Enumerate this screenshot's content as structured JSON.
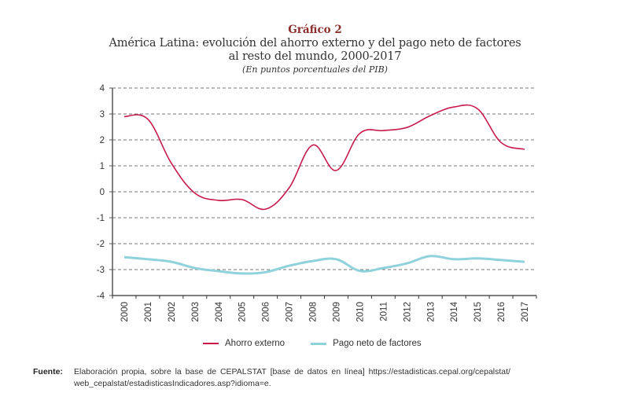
{
  "header": {
    "chart_number": "Gráfico 2",
    "title_line1": "América Latina: evolución del ahorro externo y del pago neto de factores",
    "title_line2": "al resto del mundo, 2000-2017",
    "subtitle": "(En puntos porcentuales del PIB)"
  },
  "footer": {
    "source_label": "Fuente:",
    "source_text_line1": "Elaboración propia, sobre la base de CEPALSTAT [base de datos en línea] https://estadisticas.cepal.org/cepalstat/",
    "source_text_line2": "web_cepalstat/estadisticasIndicadores.asp?idioma=e."
  },
  "colors": {
    "title": "#8c2f2f",
    "ahorro_externo": "#c8194b",
    "pago_neto": "#8fd2dc",
    "grid": "#777777",
    "axis": "#555555"
  },
  "chart_data": {
    "type": "line",
    "title": "América Latina: evolución del ahorro externo y del pago neto de factores al resto del mundo, 2000-2017",
    "subtitle": "(En puntos porcentuales del PIB)",
    "xlabel": "",
    "ylabel": "",
    "ylim": [
      -4,
      4
    ],
    "yticks": [
      4,
      3,
      2,
      1,
      0,
      -1,
      -2,
      -3,
      -4
    ],
    "ytick_labels": [
      "4",
      "3",
      "2",
      "1",
      "0",
      "-1",
      "-2",
      "-3",
      "-4"
    ],
    "grid": "horizontal dashed",
    "legend_position": "bottom-center",
    "categories": [
      "2000",
      "2001",
      "2002",
      "2003",
      "2004",
      "2005",
      "2006",
      "2007",
      "2008",
      "2009",
      "2010",
      "2011",
      "2012",
      "2013",
      "2014",
      "2015",
      "2016",
      "2017"
    ],
    "series": [
      {
        "name": "Ahorro externo",
        "color": "#c8194b",
        "values": [
          2.9,
          2.8,
          1.1,
          -0.05,
          -0.33,
          -0.3,
          -0.67,
          0.15,
          1.8,
          0.82,
          2.25,
          2.36,
          2.48,
          2.94,
          3.27,
          3.2,
          1.9,
          1.64
        ]
      },
      {
        "name": "Pago neto de factores",
        "color": "#8fd2dc",
        "values": [
          -2.52,
          -2.6,
          -2.7,
          -2.94,
          -3.06,
          -3.15,
          -3.1,
          -2.85,
          -2.67,
          -2.6,
          -3.05,
          -2.94,
          -2.76,
          -2.48,
          -2.6,
          -2.57,
          -2.63,
          -2.7
        ]
      }
    ]
  }
}
